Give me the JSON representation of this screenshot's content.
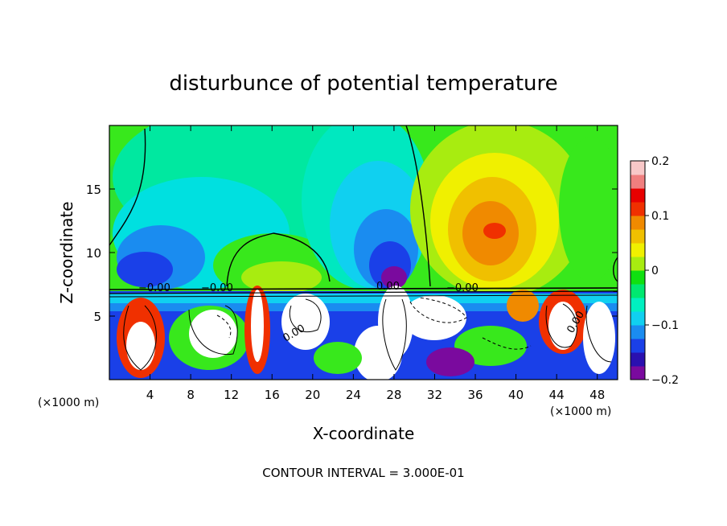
{
  "chart_data": {
    "type": "heatmap",
    "title": "disturbunce of potential temperature",
    "xlabel": "X-coordinate",
    "ylabel": "Z-coordinate",
    "x_unit_left": "(×1000 m)",
    "x_unit_right": "(×1000 m)",
    "xlim": [
      0,
      50
    ],
    "ylim": [
      0,
      20
    ],
    "x_ticks": [
      4,
      8,
      12,
      16,
      20,
      24,
      28,
      32,
      36,
      40,
      44,
      48
    ],
    "y_ticks": [
      5,
      10,
      15
    ],
    "footer": "CONTOUR INTERVAL = 3.000E-01",
    "colorbar": {
      "range": [
        -0.2,
        0.2
      ],
      "tick_labels": [
        "0.2",
        "0.1",
        "0",
        "−0.1",
        "−0.2"
      ],
      "tick_values": [
        0.2,
        0.1,
        0,
        -0.1,
        -0.2
      ],
      "colors": [
        "#7a0a9e",
        "#2a10b0",
        "#1a40e8",
        "#1a8cf0",
        "#10d0f0",
        "#00f0c0",
        "#00e870",
        "#10e010",
        "#a8ec10",
        "#f0f000",
        "#f0c000",
        "#f08a00",
        "#f03000",
        "#e80000",
        "#f07f7f",
        "#f8c8c8"
      ]
    },
    "contour_labels": [
      "−0.00",
      "−0.00",
      "0.00",
      "−0.00",
      "0.00",
      "0.00"
    ],
    "grid": false,
    "legend": "colorbar-right"
  }
}
